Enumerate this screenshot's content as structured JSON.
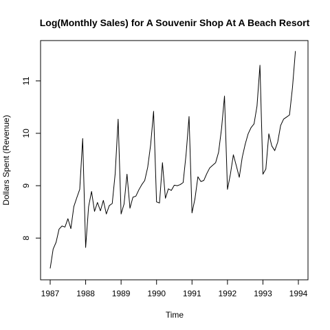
{
  "chart_data": {
    "type": "line",
    "title": "Log(Monthly Sales) for A Souvenir Shop At A Beach Resort",
    "xlabel": "Time",
    "ylabel": "Dollars Spent (Revenue)",
    "xlim": [
      1987,
      1994
    ],
    "ylim": [
      7.4,
      11.6
    ],
    "x_ticks": [
      1987,
      1988,
      1989,
      1990,
      1991,
      1992,
      1993,
      1994
    ],
    "x_tick_labels": [
      "1987",
      "1988",
      "1989",
      "1990",
      "1991",
      "1992",
      "1993",
      "1994"
    ],
    "y_ticks": [
      8,
      9,
      10,
      11
    ],
    "y_tick_labels": [
      "8",
      "9",
      "10",
      "11"
    ],
    "grid": false,
    "line_color": "#000000",
    "series": [
      {
        "x_start": 1987,
        "x_step": 0.08333,
        "values": [
          7.42,
          7.79,
          7.92,
          8.17,
          8.23,
          8.21,
          8.37,
          8.18,
          8.6,
          8.77,
          8.93,
          9.9,
          7.82,
          8.6,
          8.89,
          8.51,
          8.68,
          8.52,
          8.72,
          8.46,
          8.62,
          8.66,
          9.23,
          10.27,
          8.46,
          8.65,
          9.22,
          8.57,
          8.78,
          8.8,
          8.92,
          9.02,
          9.1,
          9.35,
          9.78,
          10.42,
          8.69,
          8.67,
          9.44,
          8.76,
          8.94,
          8.91,
          9.01,
          9.0,
          9.02,
          9.06,
          9.6,
          10.32,
          8.48,
          8.75,
          9.17,
          9.08,
          9.1,
          9.23,
          9.34,
          9.39,
          9.44,
          9.64,
          10.09,
          10.71,
          8.93,
          9.22,
          9.59,
          9.38,
          9.16,
          9.54,
          9.79,
          9.99,
          10.11,
          10.18,
          10.52,
          11.3,
          9.22,
          9.32,
          9.99,
          9.76,
          9.67,
          9.83,
          10.15,
          10.27,
          10.31,
          10.35,
          10.87,
          11.57
        ]
      }
    ]
  }
}
